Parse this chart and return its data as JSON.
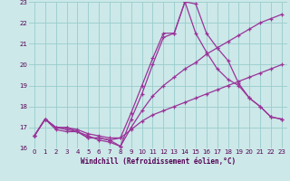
{
  "xlabel": "Windchill (Refroidissement éolien,°C)",
  "xlim": [
    -0.5,
    23.5
  ],
  "ylim": [
    16,
    23
  ],
  "yticks": [
    16,
    17,
    18,
    19,
    20,
    21,
    22,
    23
  ],
  "xticks": [
    0,
    1,
    2,
    3,
    4,
    5,
    6,
    7,
    8,
    9,
    10,
    11,
    12,
    13,
    14,
    15,
    16,
    17,
    18,
    19,
    20,
    21,
    22,
    23
  ],
  "bg_color": "#cce8e8",
  "grid_color": "#99cccc",
  "line_color": "#993399",
  "line1_x": [
    0,
    1,
    2,
    3,
    4,
    5,
    6,
    7,
    8,
    9,
    10,
    11,
    12,
    13,
    14,
    15,
    16,
    17,
    18,
    19,
    20,
    21,
    22,
    23
  ],
  "line1_y": [
    16.6,
    17.4,
    17.0,
    16.9,
    16.8,
    16.5,
    16.5,
    16.4,
    16.1,
    17.4,
    18.6,
    20.0,
    21.3,
    21.5,
    23.0,
    22.9,
    21.5,
    20.8,
    20.2,
    19.1,
    18.4,
    18.0,
    17.5,
    17.4
  ],
  "line2_x": [
    0,
    1,
    2,
    3,
    4,
    5,
    6,
    7,
    8,
    9,
    10,
    11,
    12,
    13,
    14,
    15,
    16,
    17,
    18,
    19,
    20,
    21,
    22,
    23
  ],
  "line2_y": [
    16.6,
    17.4,
    16.9,
    16.8,
    16.8,
    16.5,
    16.5,
    16.4,
    16.5,
    17.7,
    19.0,
    20.3,
    21.5,
    21.5,
    23.0,
    21.5,
    20.6,
    19.8,
    19.3,
    19.0,
    18.4,
    18.0,
    17.5,
    17.4
  ],
  "line3_x": [
    0,
    1,
    2,
    3,
    4,
    5,
    6,
    7,
    8,
    9,
    10,
    11,
    12,
    13,
    14,
    15,
    16,
    17,
    18,
    19,
    20,
    21,
    22,
    23
  ],
  "line3_y": [
    16.6,
    17.4,
    17.0,
    17.0,
    16.8,
    16.6,
    16.4,
    16.3,
    16.1,
    17.0,
    17.8,
    18.5,
    19.0,
    19.4,
    19.8,
    20.1,
    20.5,
    20.8,
    21.1,
    21.4,
    21.7,
    22.0,
    22.2,
    22.4
  ],
  "line4_x": [
    0,
    1,
    2,
    3,
    4,
    5,
    6,
    7,
    8,
    9,
    10,
    11,
    12,
    13,
    14,
    15,
    16,
    17,
    18,
    19,
    20,
    21,
    22,
    23
  ],
  "line4_y": [
    16.6,
    17.4,
    17.0,
    17.0,
    16.9,
    16.7,
    16.6,
    16.5,
    16.5,
    16.9,
    17.3,
    17.6,
    17.8,
    18.0,
    18.2,
    18.4,
    18.6,
    18.8,
    19.0,
    19.2,
    19.4,
    19.6,
    19.8,
    20.0
  ]
}
